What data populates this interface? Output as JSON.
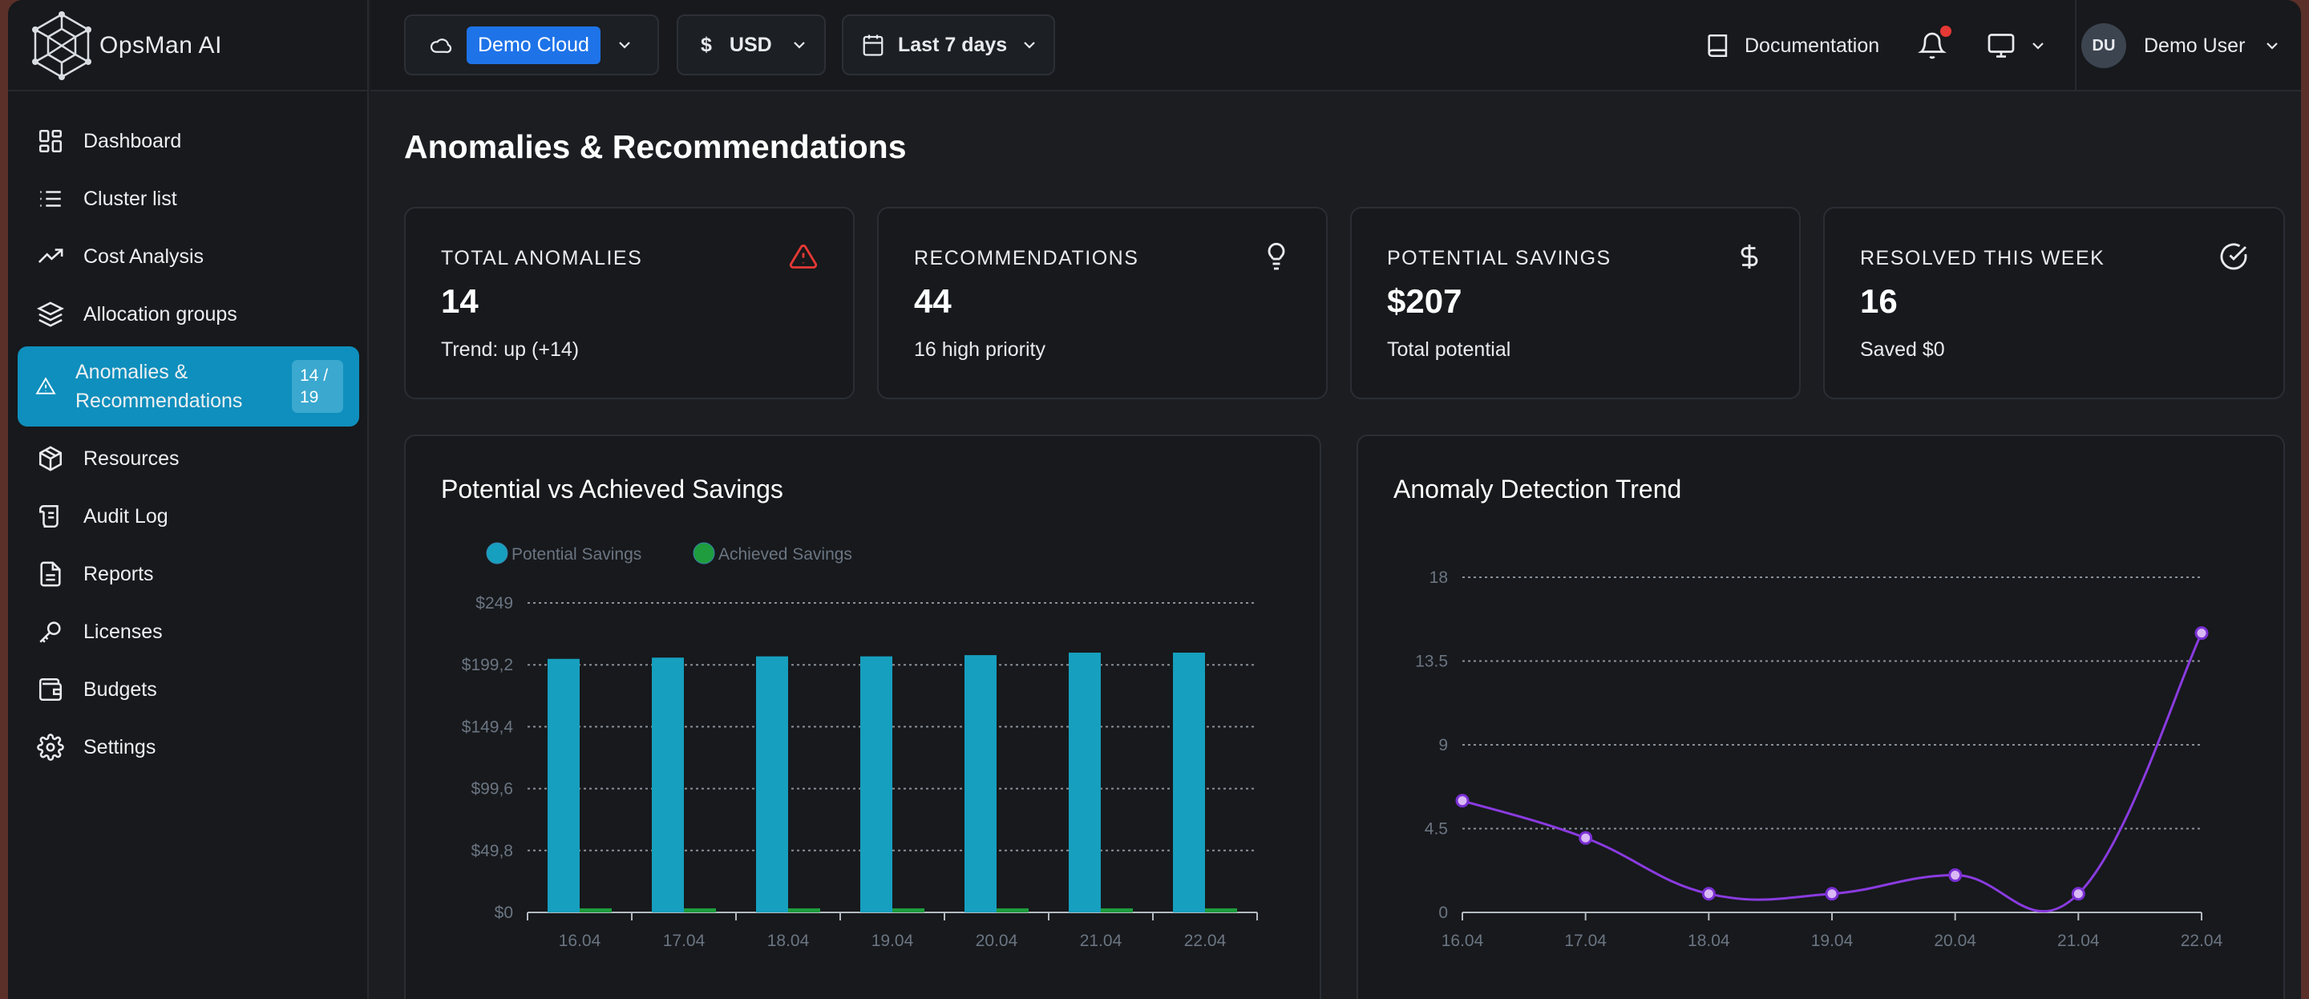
{
  "app": {
    "name": "OpsMan AI"
  },
  "sidebar": {
    "items": [
      {
        "label": "Dashboard",
        "icon": "dashboard-icon"
      },
      {
        "label": "Cluster list",
        "icon": "list-icon"
      },
      {
        "label": "Cost Analysis",
        "icon": "trend-icon"
      },
      {
        "label": "Allocation groups",
        "icon": "layers-icon"
      },
      {
        "label": "Anomalies & Recommendations",
        "icon": "warning-icon",
        "badge": "14 / 19",
        "active": true
      },
      {
        "label": "Resources",
        "icon": "package-icon"
      },
      {
        "label": "Audit Log",
        "icon": "scroll-icon"
      },
      {
        "label": "Reports",
        "icon": "file-icon"
      },
      {
        "label": "Licenses",
        "icon": "key-icon"
      },
      {
        "label": "Budgets",
        "icon": "wallet-icon"
      },
      {
        "label": "Settings",
        "icon": "gear-icon"
      }
    ]
  },
  "topbar": {
    "cloud": "Demo Cloud",
    "currency_symbol": "$",
    "currency": "USD",
    "date_range": "Last 7 days",
    "documentation": "Documentation",
    "user_initials": "DU",
    "user_name": "Demo User"
  },
  "page": {
    "title": "Anomalies & Recommendations"
  },
  "stats": [
    {
      "label": "TOTAL ANOMALIES",
      "value": "14",
      "sub": "Trend: up (+14)",
      "icon": "alert-triangle-icon",
      "color": "#e53935"
    },
    {
      "label": "RECOMMENDATIONS",
      "value": "44",
      "sub": "16 high priority",
      "icon": "lightbulb-icon",
      "color": "#e8eaed"
    },
    {
      "label": "POTENTIAL SAVINGS",
      "value": "$207",
      "sub": "Total potential",
      "icon": "dollar-icon",
      "color": "#e8eaed"
    },
    {
      "label": "RESOLVED THIS WEEK",
      "value": "16",
      "sub": "Saved $0",
      "icon": "check-circle-icon",
      "color": "#e8eaed"
    }
  ],
  "chart_data": [
    {
      "type": "bar",
      "title": "Potential vs Achieved Savings",
      "categories": [
        "16.04",
        "17.04",
        "18.04",
        "19.04",
        "20.04",
        "21.04",
        "22.04"
      ],
      "series": [
        {
          "name": "Potential Savings",
          "color": "#169fbf",
          "values": [
            204,
            205,
            206,
            206,
            207,
            209,
            209
          ]
        },
        {
          "name": "Achieved Savings",
          "color": "#1e9c3e",
          "values": [
            2,
            2,
            2,
            2,
            2,
            2,
            2
          ]
        }
      ],
      "y_ticks": [
        "$0",
        "$49,8",
        "$99,6",
        "$149,4",
        "$199,2",
        "$249"
      ],
      "ylim": [
        0,
        249
      ],
      "grid": true,
      "legend": "top-left"
    },
    {
      "type": "line",
      "title": "Anomaly Detection Trend",
      "x": [
        "16.04",
        "17.04",
        "18.04",
        "19.04",
        "20.04",
        "21.04",
        "22.04"
      ],
      "series": [
        {
          "color": "#8a3be0",
          "values": [
            6,
            4,
            1,
            1,
            2,
            1,
            15
          ]
        }
      ],
      "y_ticks": [
        "0",
        "4.5",
        "9",
        "13.5",
        "18"
      ],
      "ylim": [
        0,
        18
      ],
      "grid": true
    }
  ]
}
